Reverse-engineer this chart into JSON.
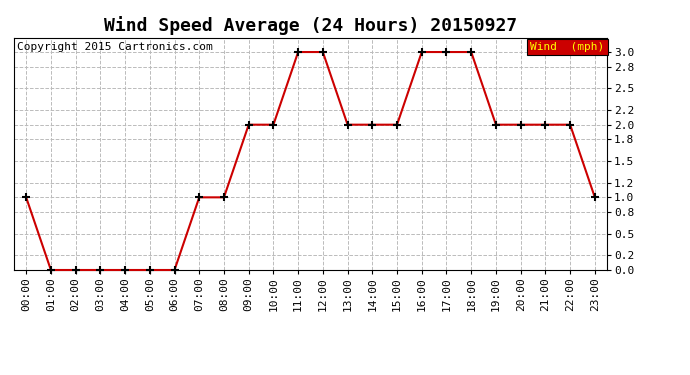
{
  "title": "Wind Speed Average (24 Hours) 20150927",
  "copyright_text": "Copyright 2015 Cartronics.com",
  "legend_label": "Wind  (mph)",
  "x_labels": [
    "00:00",
    "01:00",
    "02:00",
    "03:00",
    "04:00",
    "05:00",
    "06:00",
    "07:00",
    "08:00",
    "09:00",
    "10:00",
    "11:00",
    "12:00",
    "13:00",
    "14:00",
    "15:00",
    "16:00",
    "17:00",
    "18:00",
    "19:00",
    "20:00",
    "21:00",
    "22:00",
    "23:00"
  ],
  "y_values": [
    1.0,
    0.0,
    0.0,
    0.0,
    0.0,
    0.0,
    0.0,
    1.0,
    1.0,
    2.0,
    2.0,
    3.0,
    3.0,
    2.0,
    2.0,
    2.0,
    3.0,
    3.0,
    3.0,
    2.0,
    2.0,
    2.0,
    2.0,
    1.0
  ],
  "line_color": "#cc0000",
  "marker": "+",
  "marker_color": "#000000",
  "marker_size": 6,
  "line_width": 1.5,
  "ylim": [
    0.0,
    3.2
  ],
  "yticks": [
    0.0,
    0.2,
    0.5,
    0.8,
    1.0,
    1.2,
    1.5,
    1.8,
    2.0,
    2.2,
    2.5,
    2.8,
    3.0
  ],
  "background_color": "#ffffff",
  "grid_color": "#bbbbbb",
  "legend_bg": "#cc0000",
  "legend_text_color": "#ffff00",
  "title_fontsize": 13,
  "copyright_fontsize": 8,
  "tick_fontsize": 8,
  "legend_fontsize": 8
}
